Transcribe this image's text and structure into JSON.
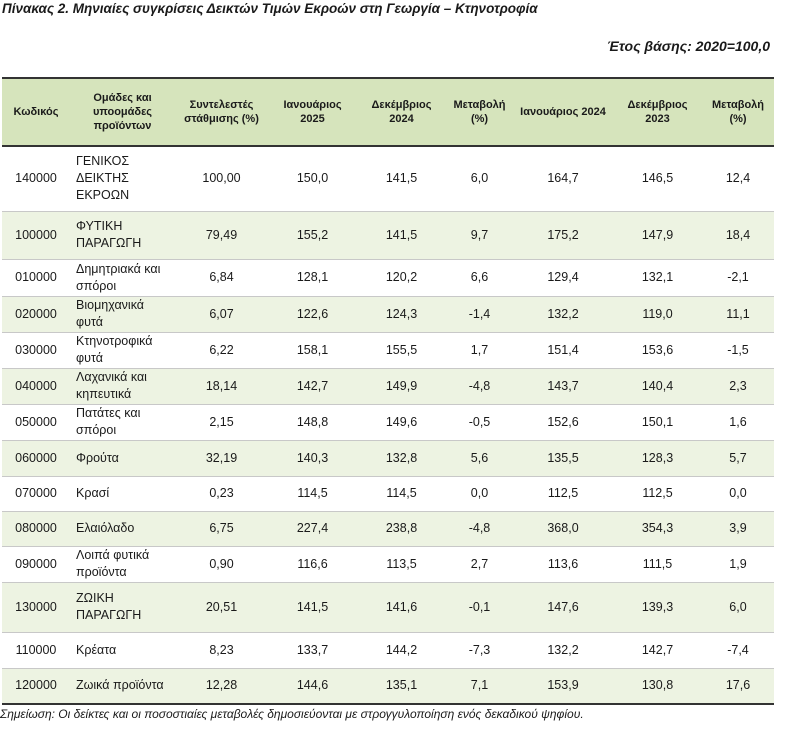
{
  "title": "Πίνακας 2. Μηνιαίες συγκρίσεις Δεικτών Τιμών Εκροών στη Γεωργία – Κτηνοτροφία",
  "base_year": "Έτος βάσης: 2020=100,0",
  "headers": {
    "code": "Κωδικός",
    "groups": "Ομάδες και υποομάδες προϊόντων",
    "weights": "Συντελεστές στάθμισης (%)",
    "jan2025": "Ιανουάριος 2025",
    "dec2024": "Δεκέμβριος 2024",
    "change1": "Μεταβολή (%)",
    "jan2024": "Ιανουάριος 2024",
    "dec2023": "Δεκέμβριος 2023",
    "change2": "Μεταβολή (%)"
  },
  "rows": [
    {
      "code": "140000",
      "group": "ΓΕΝΙΚΟΣ ΔΕΙΚΤΗΣ ΕΚΡΟΩΝ",
      "weight": "100,00",
      "jan2025": "150,0",
      "dec2024": "141,5",
      "change1": "6,0",
      "jan2024": "164,7",
      "dec2023": "146,5",
      "change2": "12,4"
    },
    {
      "code": "100000",
      "group": "ΦΥΤΙΚΗ ΠΑΡΑΓΩΓΗ",
      "weight": "79,49",
      "jan2025": "155,2",
      "dec2024": "141,5",
      "change1": "9,7",
      "jan2024": "175,2",
      "dec2023": "147,9",
      "change2": "18,4"
    },
    {
      "code": "010000",
      "group": "Δημητριακά και σπόροι",
      "weight": "6,84",
      "jan2025": "128,1",
      "dec2024": "120,2",
      "change1": "6,6",
      "jan2024": "129,4",
      "dec2023": "132,1",
      "change2": "-2,1"
    },
    {
      "code": "020000",
      "group": "Βιομηχανικά φυτά",
      "weight": "6,07",
      "jan2025": "122,6",
      "dec2024": "124,3",
      "change1": "-1,4",
      "jan2024": "132,2",
      "dec2023": "119,0",
      "change2": "11,1"
    },
    {
      "code": "030000",
      "group": "Κτηνοτροφικά φυτά",
      "weight": "6,22",
      "jan2025": "158,1",
      "dec2024": "155,5",
      "change1": "1,7",
      "jan2024": "151,4",
      "dec2023": "153,6",
      "change2": "-1,5"
    },
    {
      "code": "040000",
      "group": "Λαχανικά και κηπευτικά",
      "weight": "18,14",
      "jan2025": "142,7",
      "dec2024": "149,9",
      "change1": "-4,8",
      "jan2024": "143,7",
      "dec2023": "140,4",
      "change2": "2,3"
    },
    {
      "code": "050000",
      "group": "Πατάτες και σπόροι",
      "weight": "2,15",
      "jan2025": "148,8",
      "dec2024": "149,6",
      "change1": "-0,5",
      "jan2024": "152,6",
      "dec2023": "150,1",
      "change2": "1,6"
    },
    {
      "code": "060000",
      "group": "Φρούτα",
      "weight": "32,19",
      "jan2025": "140,3",
      "dec2024": "132,8",
      "change1": "5,6",
      "jan2024": "135,5",
      "dec2023": "128,3",
      "change2": "5,7"
    },
    {
      "code": "070000",
      "group": "Κρασί",
      "weight": "0,23",
      "jan2025": "114,5",
      "dec2024": "114,5",
      "change1": "0,0",
      "jan2024": "112,5",
      "dec2023": "112,5",
      "change2": "0,0"
    },
    {
      "code": "080000",
      "group": "Ελαιόλαδο",
      "weight": "6,75",
      "jan2025": "227,4",
      "dec2024": "238,8",
      "change1": "-4,8",
      "jan2024": "368,0",
      "dec2023": "354,3",
      "change2": "3,9"
    },
    {
      "code": "090000",
      "group": "Λοιπά φυτικά προϊόντα",
      "weight": "0,90",
      "jan2025": "116,6",
      "dec2024": "113,5",
      "change1": "2,7",
      "jan2024": "113,6",
      "dec2023": "111,5",
      "change2": "1,9"
    },
    {
      "code": "130000",
      "group": "ΖΩΙΚΗ ΠΑΡΑΓΩΓΗ",
      "weight": "20,51",
      "jan2025": "141,5",
      "dec2024": "141,6",
      "change1": "-0,1",
      "jan2024": "147,6",
      "dec2023": "139,3",
      "change2": "6,0"
    },
    {
      "code": "110000",
      "group": "Κρέατα",
      "weight": "8,23",
      "jan2025": "133,7",
      "dec2024": "144,2",
      "change1": "-7,3",
      "jan2024": "132,2",
      "dec2023": "142,7",
      "change2": "-7,4"
    },
    {
      "code": "120000",
      "group": "Ζωικά προϊόντα",
      "weight": "12,28",
      "jan2025": "144,6",
      "dec2024": "135,1",
      "change1": "7,1",
      "jan2024": "153,9",
      "dec2023": "130,8",
      "change2": "17,6"
    }
  ],
  "note": "Σημείωση: Οι δείκτες και οι ποσοστιαίες μεταβολές δημοσιεύονται με στρογγυλοποίηση ενός δεκαδικού ψηφίου."
}
